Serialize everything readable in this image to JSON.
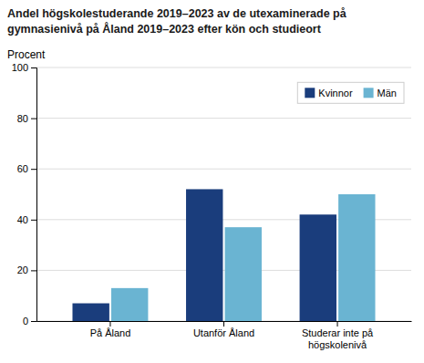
{
  "chart_data": {
    "type": "bar",
    "title": [
      "Andel högskolestuderande 2019–2023 av de utexaminerade på",
      "gymnasienivå på Åland 2019–2023 efter kön och studieort"
    ],
    "ylabel": "Procent",
    "categories": [
      "På Åland",
      "Utanför Åland",
      "Studerar inte på\nhögskolenivå"
    ],
    "series": [
      {
        "name": "Kvinnor",
        "color": "#1a3d7c",
        "values": [
          7,
          52,
          42
        ]
      },
      {
        "name": "Män",
        "color": "#6ab4d2",
        "values": [
          13,
          37,
          50
        ]
      }
    ],
    "ylim": [
      0,
      100
    ],
    "yticks": [
      0,
      20,
      40,
      60,
      80,
      100
    ],
    "grid": true,
    "legend": "upper right"
  }
}
